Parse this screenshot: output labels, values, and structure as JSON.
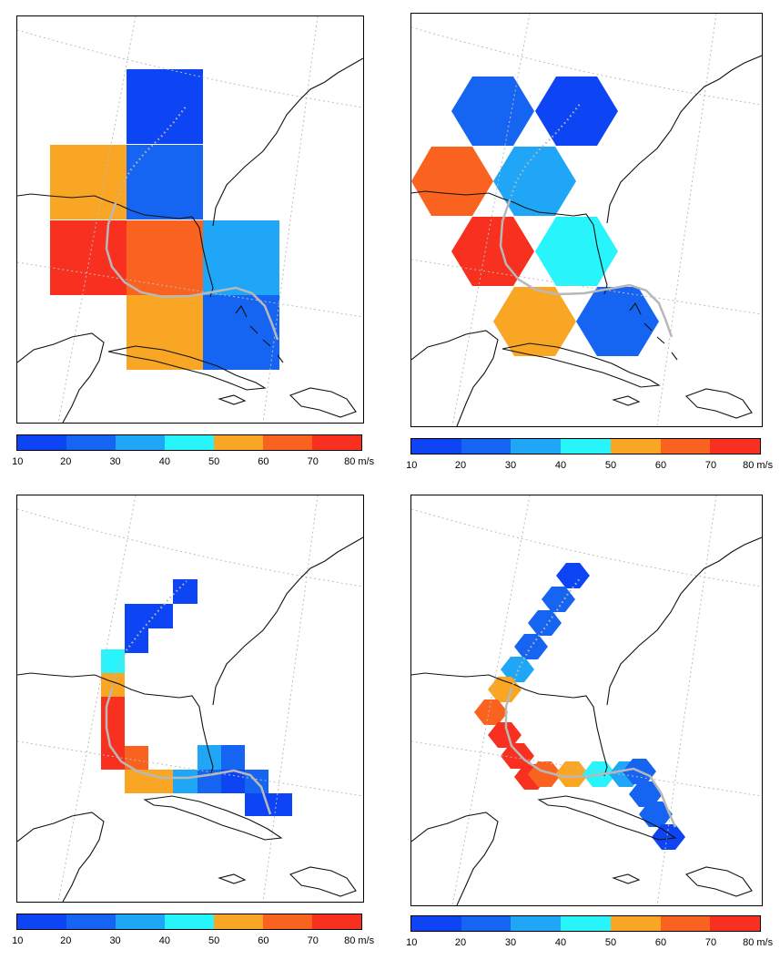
{
  "colorbar": {
    "bins": [
      {
        "min": 10,
        "max": 20,
        "color": "#0d45f5"
      },
      {
        "min": 20,
        "max": 30,
        "color": "#1565f2"
      },
      {
        "min": 30,
        "max": 40,
        "color": "#1fa6f7"
      },
      {
        "min": 40,
        "max": 50,
        "color": "#27f4fb"
      },
      {
        "min": 50,
        "max": 60,
        "color": "#f9a625"
      },
      {
        "min": 60,
        "max": 70,
        "color": "#f9631f"
      },
      {
        "min": 70,
        "max": 80,
        "color": "#f8301f"
      }
    ],
    "tick_labels": [
      "10",
      "20",
      "30",
      "40",
      "50",
      "60",
      "70",
      "80 m/s"
    ]
  },
  "colors": {
    "track": "#b8b8b8",
    "coast": "#111111",
    "graticule": "#bdbdbd"
  },
  "panels": [
    {
      "id": "square-coarse",
      "grid": "square",
      "resolution": "coarse",
      "cell_values_m_s": [
        15,
        55,
        25,
        75,
        65,
        35,
        55,
        25
      ]
    },
    {
      "id": "hex-coarse",
      "grid": "hexagonal",
      "resolution": "coarse",
      "cell_values_m_s": [
        25,
        15,
        65,
        35,
        75,
        45,
        55,
        25
      ]
    },
    {
      "id": "square-fine",
      "grid": "square",
      "resolution": "fine",
      "cell_values_m_s": [
        15,
        15,
        15,
        45,
        55,
        75,
        75,
        75,
        65,
        55,
        55,
        35,
        35,
        25,
        25,
        15
      ]
    },
    {
      "id": "hex-fine",
      "grid": "hexagonal",
      "resolution": "fine",
      "cell_values_m_s": [
        15,
        25,
        25,
        25,
        35,
        55,
        65,
        75,
        75,
        75,
        65,
        55,
        45,
        35,
        25,
        25,
        25,
        15
      ]
    }
  ]
}
